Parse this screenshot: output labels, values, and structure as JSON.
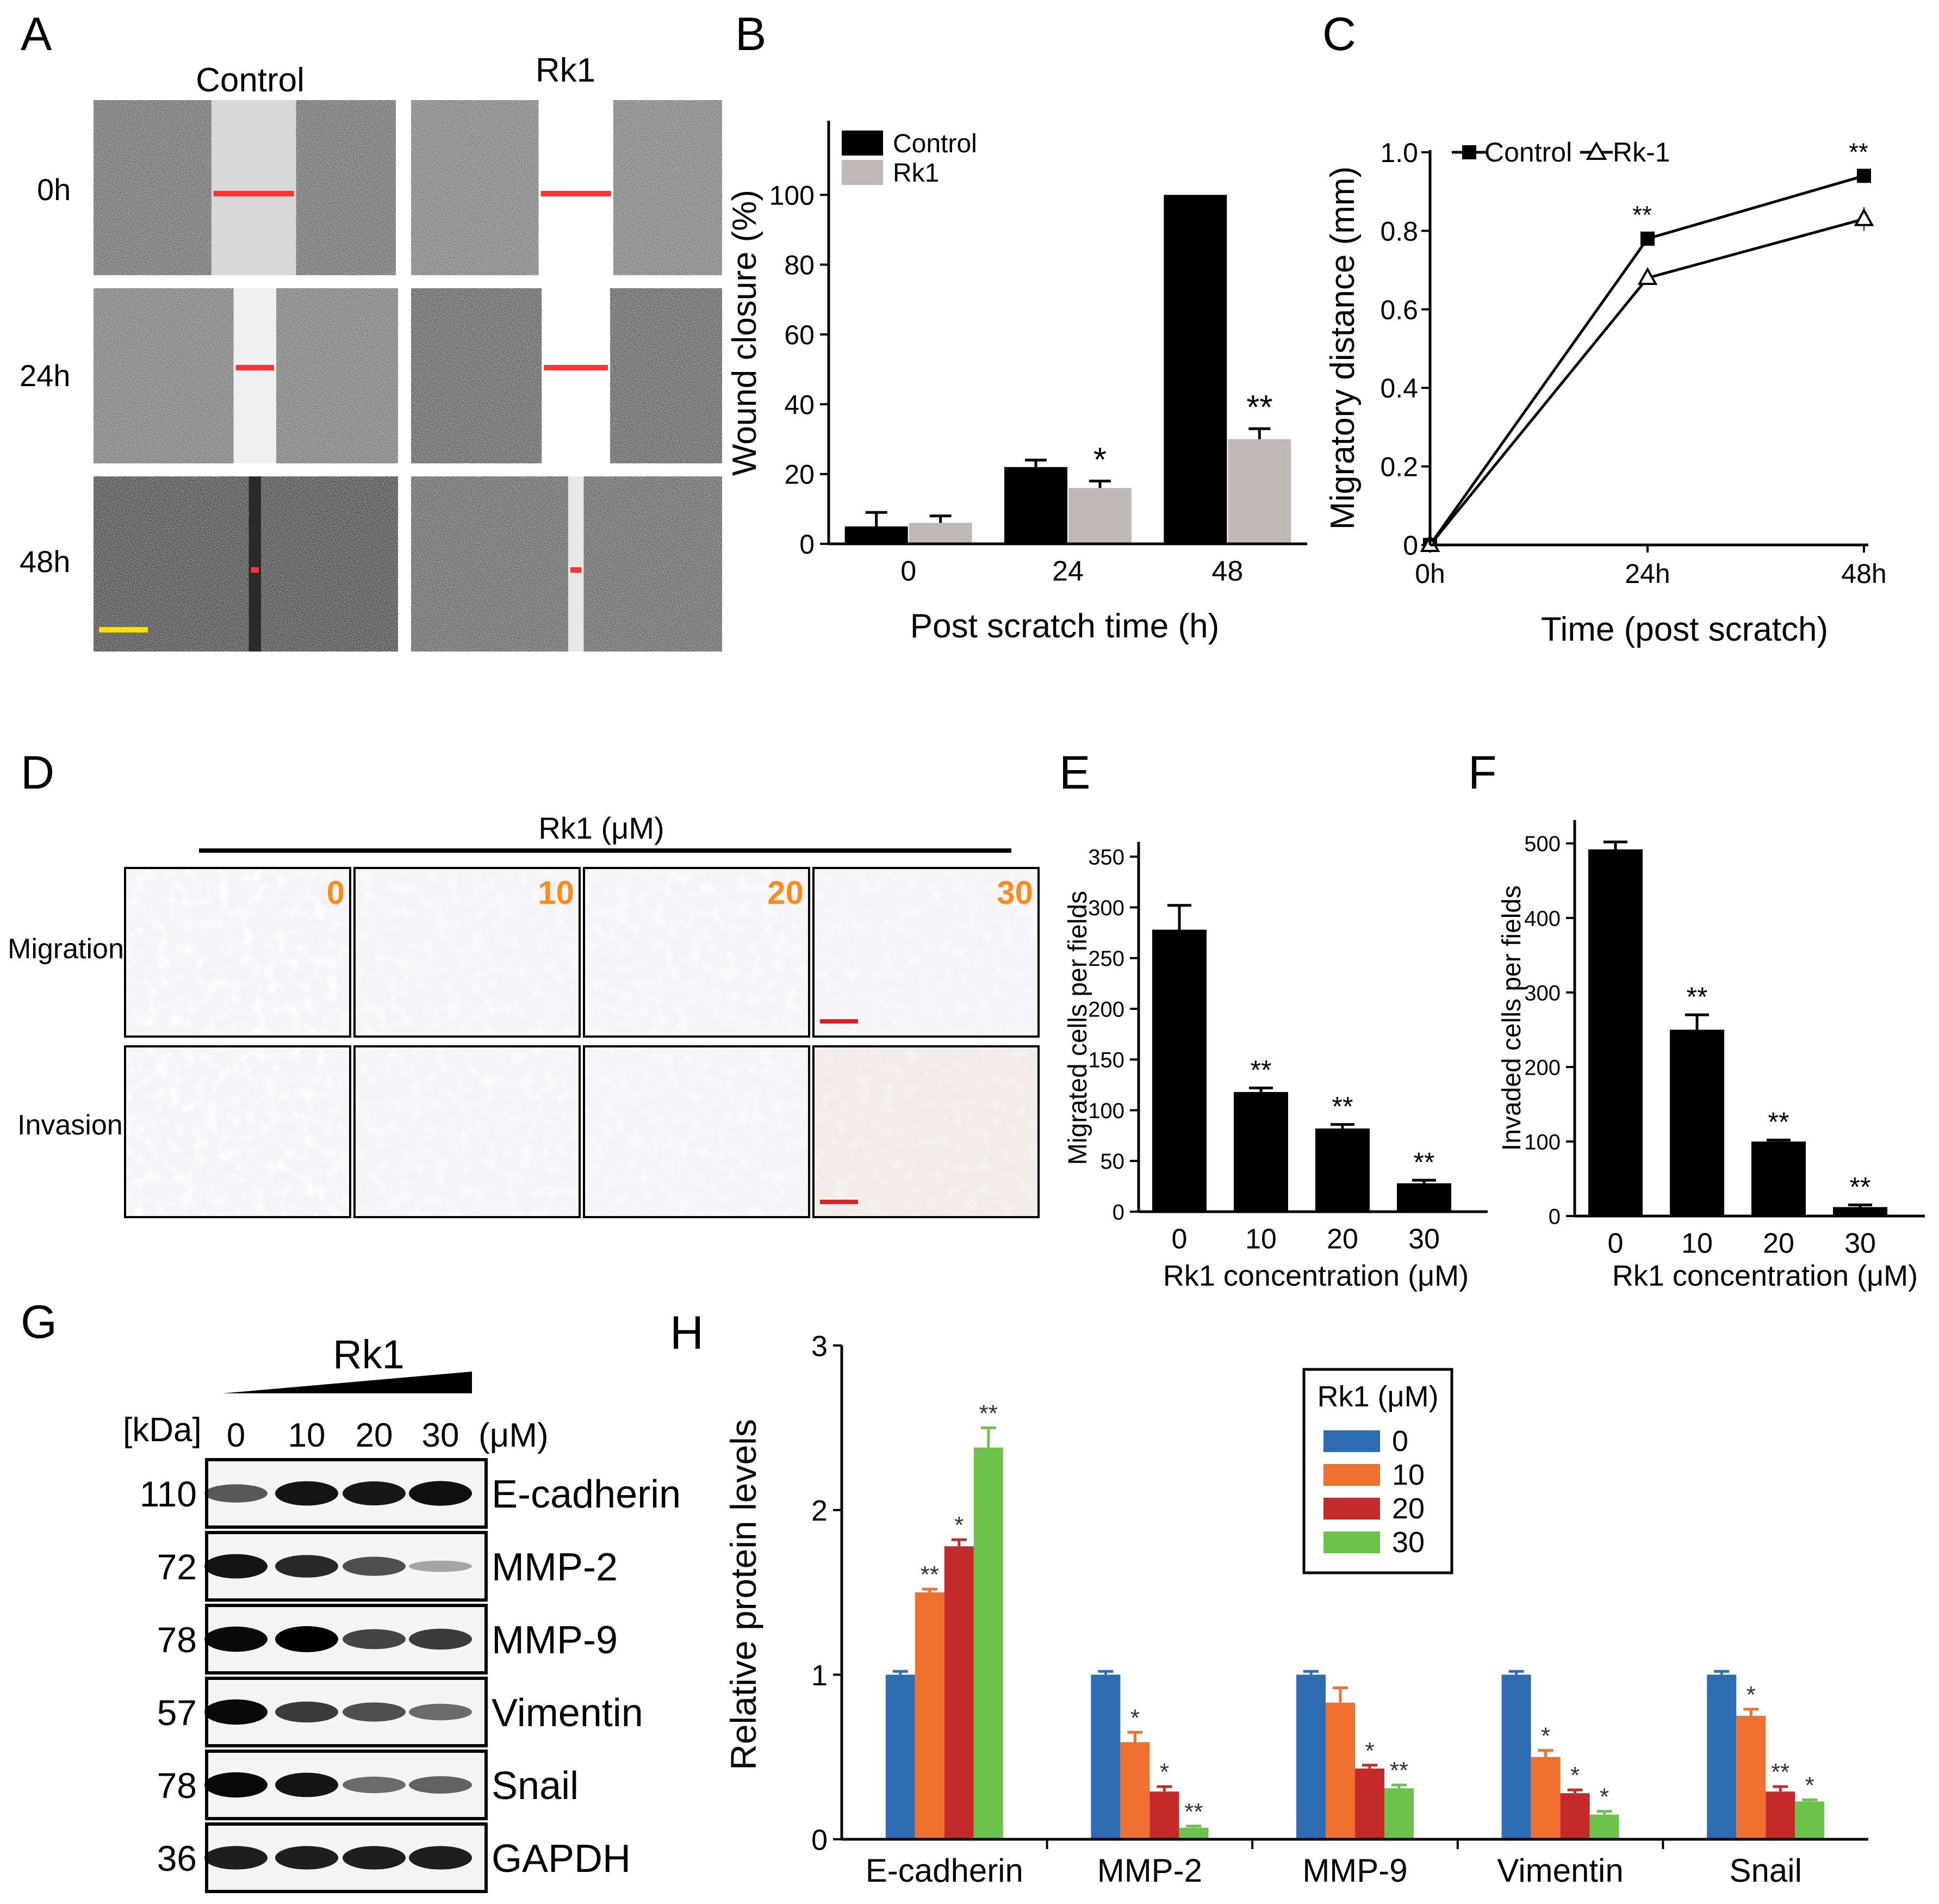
{
  "panel_letters": [
    "A",
    "B",
    "C",
    "D",
    "E",
    "F",
    "G",
    "H"
  ],
  "panel_a": {
    "col_labels": [
      "Control",
      "Rk1"
    ],
    "row_labels": [
      "0h",
      "24h",
      "48h"
    ],
    "gap_fraction": [
      [
        0.28,
        0.24
      ],
      [
        0.14,
        0.22
      ],
      [
        0.04,
        0.05
      ]
    ],
    "tones": [
      [
        "#4a4a4a",
        "#5a5a5a",
        "#202020"
      ],
      [
        "#5e5e5e",
        "#3a3a3a",
        "#404040"
      ]
    ],
    "arrow_color": "#ff3333",
    "scalebar_color": "#ffe100"
  },
  "panel_d": {
    "header": "Rk1 (μM)",
    "col_labels": [
      "0",
      "10",
      "20",
      "30"
    ],
    "row_labels": [
      "Migration",
      "Invasion"
    ],
    "density": [
      [
        0.9,
        0.5,
        0.6,
        0.3
      ],
      [
        0.95,
        0.55,
        0.4,
        0.2
      ]
    ],
    "stain_color": "#4b3b9e",
    "label_color": "#ff8c1a",
    "scalebar_color": "#e02020"
  },
  "panel_g": {
    "ramp_label": "Rk1",
    "kda_label": "[kDa]",
    "doses": [
      "0",
      "10",
      "20",
      "30"
    ],
    "unit": "(μM)",
    "rows": [
      {
        "kda": "110",
        "protein": "E-cadherin",
        "intensity": [
          0.55,
          0.9,
          0.88,
          0.92
        ]
      },
      {
        "kda": "72",
        "protein": "MMP-2",
        "intensity": [
          0.9,
          0.8,
          0.6,
          0.15
        ]
      },
      {
        "kda": "78",
        "protein": "MMP-9",
        "intensity": [
          0.95,
          1.0,
          0.65,
          0.7
        ]
      },
      {
        "kda": "57",
        "protein": "Vimentin",
        "intensity": [
          0.95,
          0.7,
          0.6,
          0.45
        ]
      },
      {
        "kda": "78",
        "protein": "Snail",
        "intensity": [
          0.95,
          0.9,
          0.45,
          0.5
        ]
      },
      {
        "kda": "36",
        "protein": "GAPDH",
        "intensity": [
          0.85,
          0.85,
          0.85,
          0.85
        ]
      }
    ]
  },
  "chart_data": [
    {
      "id": "B",
      "type": "bar",
      "categories": [
        "0",
        "24",
        "48"
      ],
      "series": [
        {
          "name": "Control",
          "color": "#000000",
          "values": [
            5,
            22,
            100
          ],
          "errors": [
            4,
            2,
            0
          ],
          "sig": [
            "",
            "",
            ""
          ]
        },
        {
          "name": "Rk1",
          "color": "#c0b8b5",
          "values": [
            6,
            16,
            30
          ],
          "errors": [
            2,
            2,
            3
          ],
          "sig": [
            "",
            "*",
            "**"
          ]
        }
      ],
      "xlabel": "Post scratch time (h)",
      "ylabel": "Wound closure (%)",
      "ylim": [
        0,
        110
      ],
      "yticks": [
        0,
        20,
        40,
        60,
        80,
        100
      ],
      "legend": "top-left"
    },
    {
      "id": "C",
      "type": "line",
      "x": [
        "0h",
        "24h",
        "48h"
      ],
      "series": [
        {
          "name": "Control",
          "marker": "square-filled",
          "values": [
            0,
            0.78,
            0.94
          ],
          "errors": [
            0,
            0.01,
            0.01
          ],
          "sig": [
            "",
            "**",
            "**"
          ]
        },
        {
          "name": "Rk-1",
          "marker": "triangle-open",
          "values": [
            0,
            0.68,
            0.83
          ],
          "errors": [
            0,
            0.01,
            0.03
          ],
          "sig": [
            "",
            "",
            ""
          ]
        }
      ],
      "xlabel": "Time (post scratch)",
      "ylabel": "Migratory distance (mm)",
      "ylim": [
        0,
        1.0
      ],
      "yticks": [
        "0",
        "0.2",
        "0.4",
        "0.6",
        "0.8",
        "1.0"
      ],
      "legend": "top"
    },
    {
      "id": "E",
      "type": "bar",
      "categories": [
        "0",
        "10",
        "20",
        "30"
      ],
      "values": [
        278,
        118,
        82,
        28
      ],
      "errors": [
        24,
        4,
        4,
        3
      ],
      "sig": [
        "",
        "**",
        "**",
        "**"
      ],
      "color": "#000000",
      "xlabel": "Rk1 concentration (μM)",
      "ylabel": "Migrated cells per fields",
      "ylim": [
        0,
        350
      ],
      "yticks": [
        0,
        50,
        100,
        150,
        200,
        250,
        300,
        350
      ]
    },
    {
      "id": "F",
      "type": "bar",
      "categories": [
        "0",
        "10",
        "20",
        "30"
      ],
      "values": [
        492,
        250,
        100,
        12
      ],
      "errors": [
        10,
        20,
        2,
        3
      ],
      "sig": [
        "",
        "**",
        "**",
        "**"
      ],
      "color": "#000000",
      "xlabel": "Rk1 concentration (μM)",
      "ylabel": "Invaded cells per fields",
      "ylim": [
        0,
        510
      ],
      "yticks": [
        0,
        100,
        200,
        300,
        400,
        500
      ]
    },
    {
      "id": "H",
      "type": "bar",
      "categories": [
        "E-cadherin",
        "MMP-2",
        "MMP-9",
        "Vimentin",
        "Snail"
      ],
      "series": [
        {
          "name": "0",
          "color": "#2e6db4",
          "values": [
            1,
            1,
            1,
            1,
            1
          ],
          "errors": [
            0.02,
            0.02,
            0.02,
            0.02,
            0.02
          ],
          "sig": [
            "",
            "",
            "",
            "",
            ""
          ]
        },
        {
          "name": "10",
          "color": "#f07030",
          "values": [
            1.5,
            0.59,
            0.83,
            0.5,
            0.75
          ],
          "errors": [
            0.02,
            0.06,
            0.09,
            0.04,
            0.04
          ],
          "sig": [
            "**",
            "*",
            "",
            "*",
            "*"
          ]
        },
        {
          "name": "20",
          "color": "#c42a2a",
          "values": [
            1.78,
            0.29,
            0.43,
            0.28,
            0.29
          ],
          "errors": [
            0.04,
            0.03,
            0.02,
            0.02,
            0.03
          ],
          "sig": [
            "*",
            "*",
            "*",
            "*",
            "**"
          ]
        },
        {
          "name": "30",
          "color": "#6cc24a",
          "values": [
            2.38,
            0.07,
            0.31,
            0.15,
            0.23
          ],
          "errors": [
            0.12,
            0.01,
            0.02,
            0.02,
            0.01
          ],
          "sig": [
            "**",
            "**",
            "**",
            "*",
            "*"
          ]
        }
      ],
      "ylabel": "Relative protein levels",
      "ylim": [
        0,
        3
      ],
      "yticks": [
        0,
        1,
        2,
        3
      ],
      "legend_title": "Rk1 (μM)",
      "legend": "top-right"
    }
  ]
}
